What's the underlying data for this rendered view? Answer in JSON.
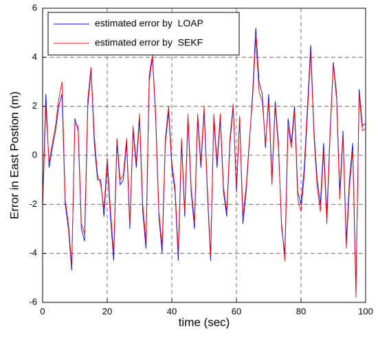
{
  "chart_data": {
    "type": "line",
    "xlabel": "time (sec)",
    "ylabel": "Error in East Postion  (m)",
    "x": [
      0,
      1,
      2,
      3,
      4,
      5,
      6,
      7,
      8,
      9,
      10,
      11,
      12,
      13,
      14,
      15,
      16,
      17,
      18,
      19,
      20,
      21,
      22,
      23,
      24,
      25,
      26,
      27,
      28,
      29,
      30,
      31,
      32,
      33,
      34,
      35,
      36,
      37,
      38,
      39,
      40,
      41,
      42,
      43,
      44,
      45,
      46,
      47,
      48,
      49,
      50,
      51,
      52,
      53,
      54,
      55,
      56,
      57,
      58,
      59,
      60,
      61,
      62,
      63,
      64,
      65,
      66,
      67,
      68,
      69,
      70,
      71,
      72,
      73,
      74,
      75,
      76,
      77,
      78,
      79,
      80,
      81,
      82,
      83,
      84,
      85,
      86,
      87,
      88,
      89,
      90,
      91,
      92,
      93,
      94,
      95,
      96,
      97,
      98,
      99,
      100
    ],
    "series": [
      {
        "name": "estimated error by  LOAP",
        "color": "#0000ff",
        "values": [
          -2,
          2.5,
          -0.5,
          0.3,
          1,
          2,
          2.5,
          -2,
          -3,
          -4.7,
          1.5,
          1,
          -3,
          -3.5,
          2,
          3.5,
          0.5,
          -1,
          -1,
          -2.5,
          -0.3,
          -2.5,
          -4.3,
          0.5,
          -1.2,
          -1,
          0.5,
          -3,
          1,
          -0.5,
          1.5,
          -2.3,
          -3.8,
          3,
          4,
          1.5,
          -2.5,
          -4,
          0.5,
          1.8,
          -0.5,
          -1.5,
          -4.3,
          0.5,
          -2.5,
          1.5,
          -1.5,
          -3,
          1.5,
          -0.5,
          1.8,
          -1.5,
          -4.3,
          1.5,
          -0.5,
          1.5,
          -1.5,
          -2.5,
          0.5,
          2,
          -1.5,
          1.5,
          -2.8,
          -1.5,
          0.5,
          2.5,
          5.2,
          3,
          2.5,
          0.3,
          2.5,
          -1,
          2.2,
          0.5,
          -3,
          -4,
          1.5,
          0.5,
          2,
          -1.5,
          -2,
          -0.5,
          2,
          4.5,
          1,
          -1,
          -2,
          0.5,
          -2.5,
          1,
          3.8,
          2.5,
          -1.5,
          1,
          -3.5,
          -1,
          0.5,
          -5.5,
          2.7,
          1.2,
          1.3
        ]
      },
      {
        "name": "estimated error by  SEKF",
        "color": "#ff0000",
        "values": [
          -2.2,
          2,
          -0.3,
          0.5,
          1.2,
          2.3,
          3,
          -1.8,
          -2.8,
          -4.5,
          1.3,
          1.2,
          -2.8,
          -3.2,
          2.3,
          3.6,
          0.8,
          -0.8,
          -1.2,
          -2.2,
          -0.1,
          -2.2,
          -4,
          0.7,
          -1,
          -0.8,
          0.7,
          -2.8,
          1.2,
          -0.3,
          1.7,
          -2,
          -3.5,
          3.3,
          4.1,
          1.7,
          -2.3,
          -3.7,
          0.7,
          2,
          -0.3,
          -1.3,
          -4,
          0.7,
          -2.3,
          1.7,
          -1.3,
          -2.7,
          1.7,
          -0.3,
          2,
          -1.3,
          -4.1,
          1.7,
          -0.3,
          1.7,
          -1.3,
          -2.3,
          0.7,
          2.1,
          -1.3,
          1.6,
          -2.5,
          -1.3,
          0.6,
          2.3,
          4.8,
          2.6,
          2.2,
          0.5,
          2.2,
          -1.2,
          2,
          0.3,
          -2.8,
          -4.3,
          1.2,
          0.3,
          1.8,
          -1.8,
          -2.3,
          -0.8,
          1.7,
          4.2,
          0.8,
          -1.3,
          -2.3,
          0.2,
          -2.8,
          0.8,
          3.7,
          2.3,
          -1.8,
          0.8,
          -3.8,
          -1.3,
          0.2,
          -5.8,
          2.5,
          1,
          1.1
        ]
      }
    ],
    "xlim": [
      0,
      100
    ],
    "xticks": [
      0,
      20,
      40,
      60,
      80,
      100
    ],
    "ylim": [
      -6,
      6
    ],
    "yticks": [
      -6,
      -4,
      -2,
      0,
      2,
      4,
      6
    ],
    "grid": true,
    "legend": "upper left"
  }
}
